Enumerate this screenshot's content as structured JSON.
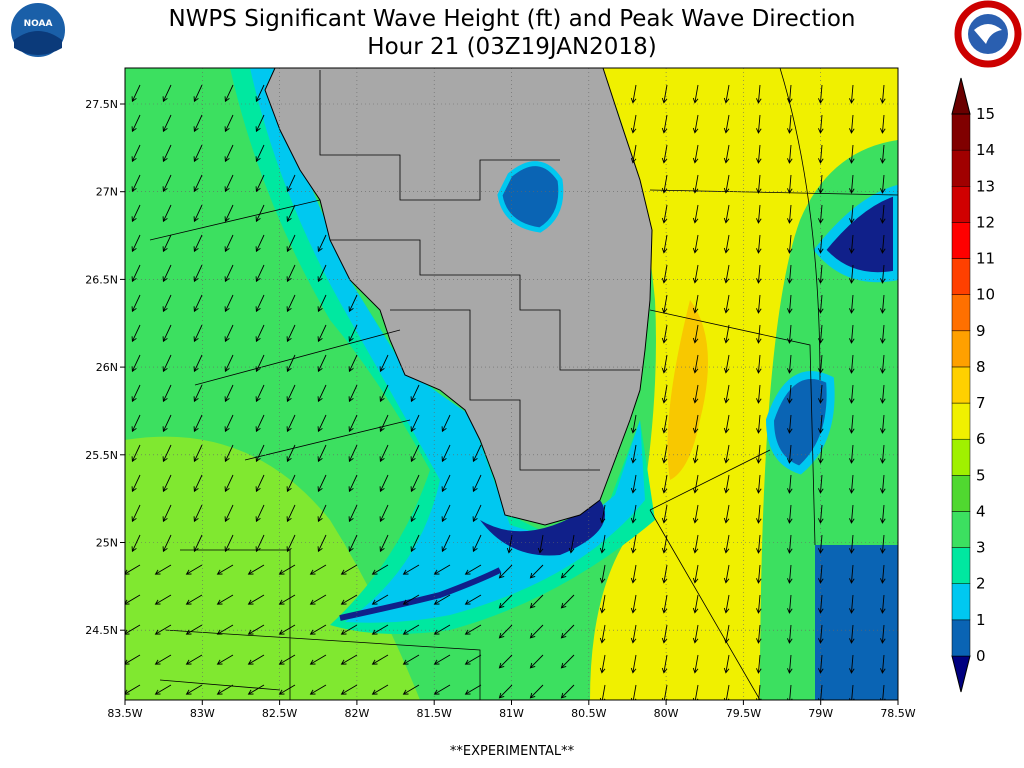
{
  "header": {
    "title": "NWPS Significant Wave Height (ft) and Peak Wave Direction",
    "subtitle": "Hour 21 (03Z19JAN2018)",
    "left_logo": "NOAA"
  },
  "map": {
    "lat_labels": [
      "27.5N",
      "27N",
      "26.5N",
      "26N",
      "25.5N",
      "25N",
      "24.5N"
    ],
    "lon_labels": [
      "83.5W",
      "83W",
      "82.5W",
      "82W",
      "81.5W",
      "81W",
      "80.5W",
      "80W",
      "79.5W",
      "79W",
      "78.5W"
    ]
  },
  "colorbar": {
    "labels": [
      0,
      1,
      2,
      3,
      4,
      5,
      6,
      7,
      8,
      9,
      10,
      11,
      12,
      13,
      14,
      15
    ]
  },
  "footer": "**EXPERIMENTAL**"
}
